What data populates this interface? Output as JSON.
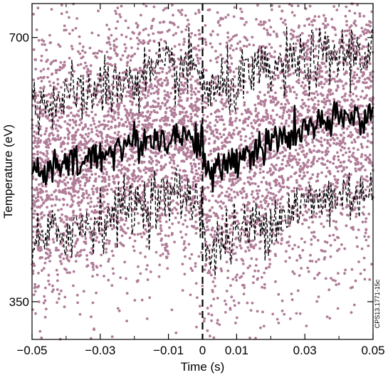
{
  "chart_data": {
    "type": "scatter",
    "xlabel": "Time (s)",
    "ylabel": "Temperature (eV)",
    "side_label": "CPS13.1771-15c",
    "xlim": [
      -0.05,
      0.05
    ],
    "ylim": [
      300,
      745
    ],
    "x_ticks": [
      {
        "value": -0.05,
        "label": "−0.05"
      },
      {
        "value": -0.03,
        "label": "−0.03"
      },
      {
        "value": -0.01,
        "label": "−0.01"
      },
      {
        "value": 0,
        "label": "0"
      },
      {
        "value": 0.01,
        "label": "0.01"
      },
      {
        "value": 0.03,
        "label": "0.03"
      },
      {
        "value": 0.05,
        "label": "0.05"
      }
    ],
    "x_minor_ticks": [
      -0.04,
      -0.02,
      0.02,
      0.04
    ],
    "y_ticks": [
      {
        "value": 700,
        "label": "700"
      },
      {
        "value": 350,
        "label": "350"
      }
    ],
    "vertical_line_x": 0,
    "colors": {
      "scatter": "#b07c98",
      "mean": "#000000",
      "band": "#000000"
    },
    "series": [
      {
        "style": "solid",
        "x": [
          -0.05,
          -0.045,
          -0.04,
          -0.035,
          -0.03,
          -0.025,
          -0.02,
          -0.015,
          -0.01,
          -0.005,
          0,
          0.001,
          0.0025,
          0.005,
          0.01,
          0.015,
          0.02,
          0.025,
          0.03,
          0.035,
          0.04,
          0.045,
          0.05
        ],
        "y": [
          520,
          525,
          530,
          535,
          545,
          555,
          560,
          565,
          568,
          570,
          565,
          520,
          515,
          525,
          540,
          550,
          560,
          570,
          578,
          585,
          590,
          595,
          600
        ]
      },
      {
        "style": "dashed",
        "x": [
          -0.05,
          -0.045,
          -0.04,
          -0.035,
          -0.03,
          -0.025,
          -0.02,
          -0.015,
          -0.01,
          -0.005,
          0,
          0.001,
          0.0025,
          0.005,
          0.01,
          0.015,
          0.02,
          0.025,
          0.03,
          0.035,
          0.04,
          0.045,
          0.05
        ],
        "y": [
          610,
          615,
          620,
          625,
          632,
          638,
          645,
          650,
          655,
          658,
          655,
          635,
          625,
          630,
          640,
          648,
          655,
          662,
          668,
          672,
          676,
          680,
          682
        ]
      },
      {
        "style": "dashed",
        "x": [
          -0.05,
          -0.045,
          -0.04,
          -0.035,
          -0.03,
          -0.025,
          -0.02,
          -0.015,
          -0.01,
          -0.005,
          0,
          0.001,
          0.0025,
          0.005,
          0.01,
          0.015,
          0.02,
          0.025,
          0.03,
          0.035,
          0.04,
          0.045,
          0.05
        ],
        "y": [
          420,
          435,
          445,
          450,
          460,
          470,
          478,
          485,
          490,
          493,
          480,
          420,
          400,
          430,
          440,
          450,
          460,
          470,
          478,
          485,
          490,
          495,
          500
        ]
      }
    ]
  }
}
